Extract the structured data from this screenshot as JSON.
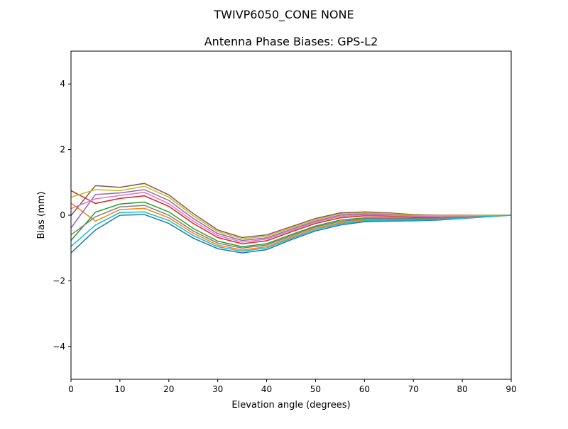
{
  "chart_data": {
    "type": "line",
    "suptitle": "TWIVP6050_CONE  NONE",
    "title": "Antenna Phase Biases: GPS-L2",
    "xlabel": "Elevation angle (degrees)",
    "ylabel": "Bias (mm)",
    "xlim": [
      0,
      90
    ],
    "ylim": [
      -5,
      5
    ],
    "xticks": [
      0,
      10,
      20,
      30,
      40,
      50,
      60,
      70,
      80,
      90
    ],
    "yticks": [
      -4,
      -2,
      0,
      2,
      4
    ],
    "ytick_labels": [
      "−4",
      "−2",
      "0",
      "2",
      "4"
    ],
    "grid": false,
    "legend": "none",
    "x": [
      0,
      5,
      10,
      15,
      20,
      25,
      30,
      35,
      40,
      45,
      50,
      55,
      60,
      65,
      70,
      75,
      80,
      85,
      90
    ],
    "colors": [
      "#1f77b4",
      "#ff7f0e",
      "#2ca02c",
      "#d62728",
      "#9467bd",
      "#8c564b",
      "#e377c2",
      "#7f7f7f",
      "#bcbd22",
      "#17becf"
    ],
    "series": [
      {
        "values": [
          -1.15,
          -0.45,
          0.0,
          0.02,
          -0.25,
          -0.7,
          -1.02,
          -1.15,
          -1.05,
          -0.75,
          -0.48,
          -0.3,
          -0.2,
          -0.18,
          -0.17,
          -0.15,
          -0.1,
          -0.05,
          0
        ]
      },
      {
        "values": [
          0.37,
          -0.18,
          0.17,
          0.21,
          -0.08,
          -0.55,
          -0.91,
          -1.06,
          -0.96,
          -0.67,
          -0.4,
          -0.23,
          -0.14,
          -0.13,
          -0.13,
          -0.12,
          -0.08,
          -0.04,
          0
        ]
      },
      {
        "values": [
          -0.77,
          0.09,
          0.34,
          0.4,
          0.1,
          -0.4,
          -0.79,
          -0.96,
          -0.87,
          -0.59,
          -0.33,
          -0.15,
          -0.08,
          -0.08,
          -0.09,
          -0.09,
          -0.06,
          -0.03,
          0
        ]
      },
      {
        "values": [
          0.75,
          0.36,
          0.51,
          0.59,
          0.27,
          -0.25,
          -0.68,
          -0.87,
          -0.78,
          -0.51,
          -0.25,
          -0.08,
          -0.02,
          -0.03,
          -0.06,
          -0.06,
          -0.04,
          -0.02,
          0
        ]
      },
      {
        "values": [
          -0.39,
          0.63,
          0.68,
          0.78,
          0.45,
          -0.1,
          -0.56,
          -0.77,
          -0.69,
          -0.43,
          -0.18,
          0.0,
          0.04,
          0.02,
          -0.02,
          -0.03,
          -0.02,
          -0.01,
          0
        ]
      },
      {
        "values": [
          -0.01,
          0.9,
          0.85,
          0.97,
          0.62,
          0.05,
          -0.45,
          -0.68,
          -0.6,
          -0.35,
          -0.1,
          0.07,
          0.1,
          0.07,
          0.02,
          0,
          0,
          0,
          0
        ]
      },
      {
        "values": [
          0.2,
          0.5,
          0.6,
          0.7,
          0.35,
          -0.18,
          -0.62,
          -0.82,
          -0.73,
          -0.47,
          -0.21,
          -0.04,
          0.01,
          0.0,
          -0.04,
          -0.05,
          -0.03,
          -0.01,
          0
        ]
      },
      {
        "values": [
          -0.6,
          -0.05,
          0.25,
          0.3,
          0.0,
          -0.48,
          -0.85,
          -1.0,
          -0.91,
          -0.63,
          -0.36,
          -0.19,
          -0.11,
          -0.1,
          -0.11,
          -0.1,
          -0.07,
          -0.03,
          0
        ]
      },
      {
        "values": [
          0.55,
          0.78,
          0.75,
          0.88,
          0.55,
          -0.02,
          -0.5,
          -0.72,
          -0.64,
          -0.39,
          -0.14,
          0.04,
          0.07,
          0.05,
          0.0,
          -0.01,
          -0.01,
          0,
          0
        ]
      },
      {
        "values": [
          -0.95,
          -0.3,
          0.08,
          0.1,
          -0.16,
          -0.62,
          -0.96,
          -1.1,
          -1.0,
          -0.71,
          -0.44,
          -0.26,
          -0.17,
          -0.15,
          -0.15,
          -0.13,
          -0.09,
          -0.04,
          0
        ]
      }
    ]
  }
}
